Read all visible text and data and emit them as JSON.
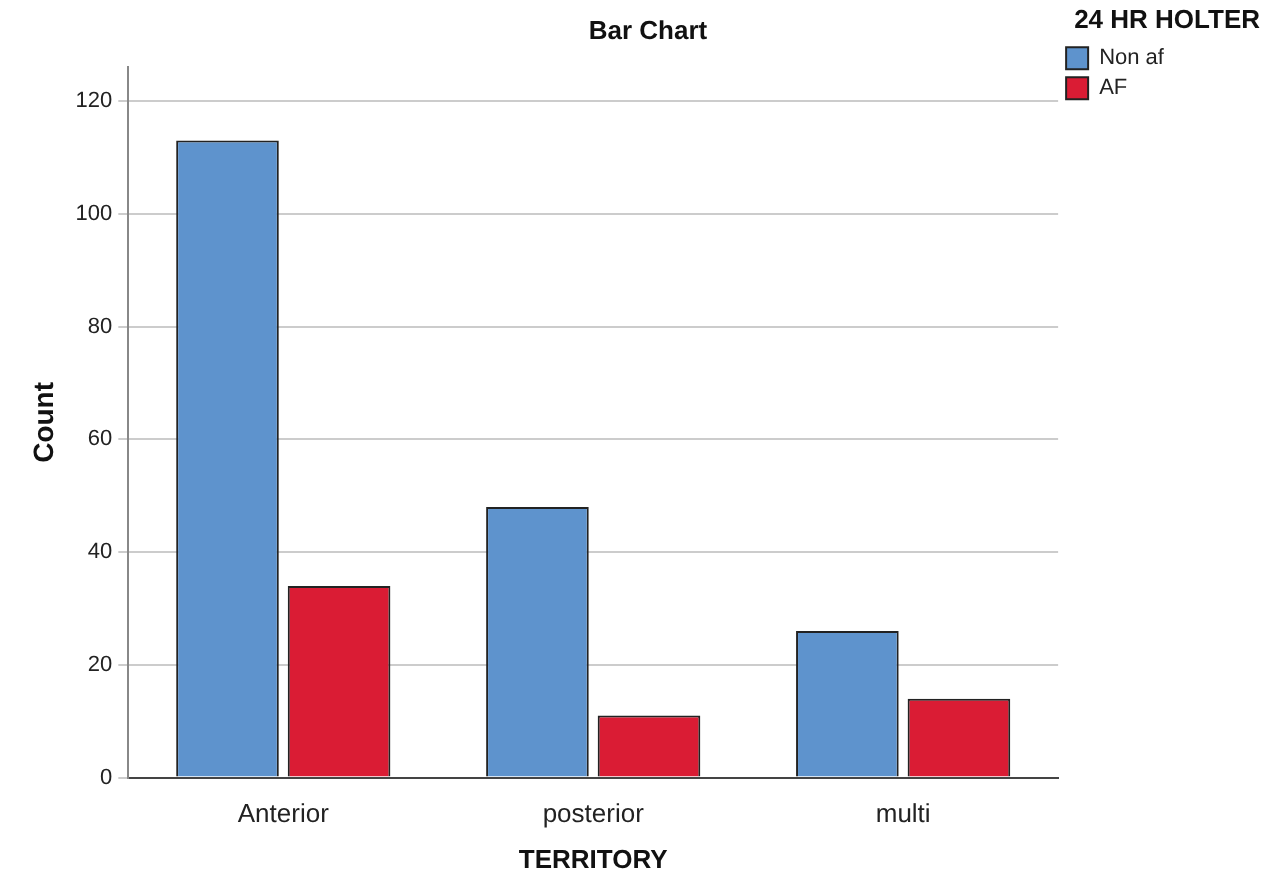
{
  "chart_data": {
    "type": "bar",
    "title": "Bar Chart",
    "xlabel": "TERRITORY",
    "ylabel": "Count",
    "legend_title": "24 HR HOLTER",
    "categories": [
      "Anterior",
      "posterior",
      "multi"
    ],
    "series": [
      {
        "name": "Non af",
        "color": "#5e93cd",
        "values": [
          113,
          48,
          26
        ]
      },
      {
        "name": "AF",
        "color": "#da1c34",
        "values": [
          34,
          11,
          14
        ]
      }
    ],
    "ylim": [
      0,
      126
    ],
    "yticks": [
      0,
      20,
      40,
      60,
      80,
      100,
      120
    ],
    "grid": "y",
    "legend": "top right"
  }
}
